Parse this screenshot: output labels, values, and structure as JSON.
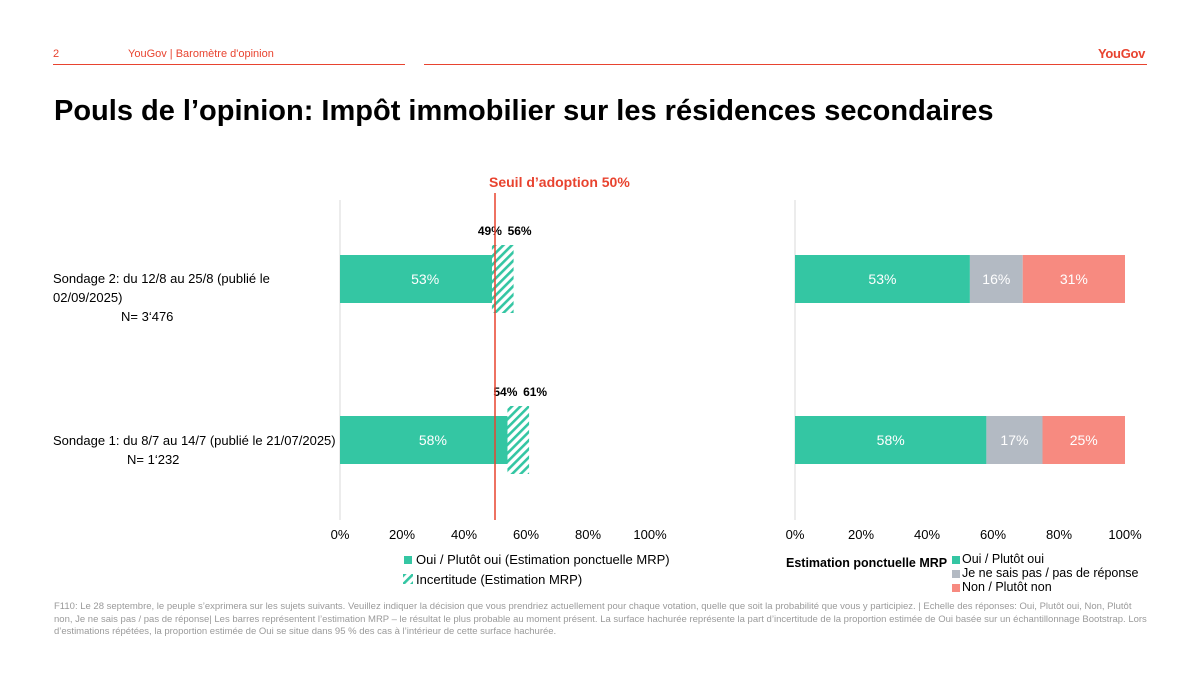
{
  "header": {
    "page_number": "2",
    "section": "YouGov | Baromètre d'opinion",
    "logo": "YouGov"
  },
  "title": "Pouls de l’opinion: Impôt immobilier sur les résidences secondaires",
  "threshold_label": "Seuil d’adoption 50%",
  "rows": [
    {
      "label_line1": "Sondage 2: du 12/8 au 25/8 (publié le 02/09/2025)",
      "label_line2": "N= 3‘476"
    },
    {
      "label_line1": "Sondage 1: du 8/7 au 14/7 (publié le 21/07/2025)",
      "label_line2": "N= 1‘232"
    }
  ],
  "colors": {
    "oui": "#34c6a3",
    "neutre": "#b3bac3",
    "non": "#f78a80",
    "threshold": "#e8432f",
    "axis": "#d9d9d9"
  },
  "chart_data": [
    {
      "type": "bar",
      "orientation": "horizontal",
      "categories": [
        "Sondage 2: du 12/8 au 25/8 (publié le 02/09/2025)",
        "Sondage 1: du 8/7 au 14/7 (publié le 21/07/2025)"
      ],
      "series": [
        {
          "name": "Oui / Plutôt oui (Estimation ponctuelle MRP)",
          "values": [
            53,
            58
          ]
        }
      ],
      "uncertainty": {
        "name": "Incertitude (Estimation MRP)",
        "low": [
          49,
          54
        ],
        "high": [
          56,
          61
        ]
      },
      "data_labels": [
        "53%",
        "58%"
      ],
      "uncertainty_labels": [
        [
          "49%",
          "56%"
        ],
        [
          "54%",
          "61%"
        ]
      ],
      "threshold": 50,
      "xlim": [
        0,
        100
      ],
      "xticks": [
        "0%",
        "20%",
        "40%",
        "60%",
        "80%",
        "100%"
      ],
      "legend_position": "bottom"
    },
    {
      "type": "bar",
      "orientation": "horizontal",
      "stacked": true,
      "categories": [
        "Sondage 2: du 12/8 au 25/8 (publié le 02/09/2025)",
        "Sondage 1: du 8/7 au 14/7 (publié le 21/07/2025)"
      ],
      "legend_title": "Estimation ponctuelle MRP",
      "series": [
        {
          "name": "Oui / Plutôt oui",
          "values": [
            53,
            58
          ]
        },
        {
          "name": "Je ne sais pas / pas de réponse",
          "values": [
            16,
            17
          ]
        },
        {
          "name": "Non / Plutôt non",
          "values": [
            31,
            25
          ]
        }
      ],
      "xlim": [
        0,
        100
      ],
      "xticks": [
        "0%",
        "20%",
        "40%",
        "60%",
        "80%",
        "100%"
      ],
      "legend_position": "bottom"
    }
  ],
  "footnote": "F110: Le 28 septembre, le peuple s’exprimera sur les sujets suivants. Veuillez indiquer la décision que vous prendriez actuellement pour chaque votation, quelle que soit la probabilité que vous y participiez. | Echelle des réponses: Oui, Plutôt oui, Non, Plutôt non, Je ne sais pas / pas de réponse| Les barres représentent l’estimation MRP – le résultat le plus probable au moment présent. La surface hachurée représente la part d’incertitude de la proportion estimée de Oui basée sur un échantillonnage Bootstrap. Lors d’estimations répétées, la proportion estimée de Oui se situe dans 95 % des cas à l’intérieur de cette surface hachurée."
}
